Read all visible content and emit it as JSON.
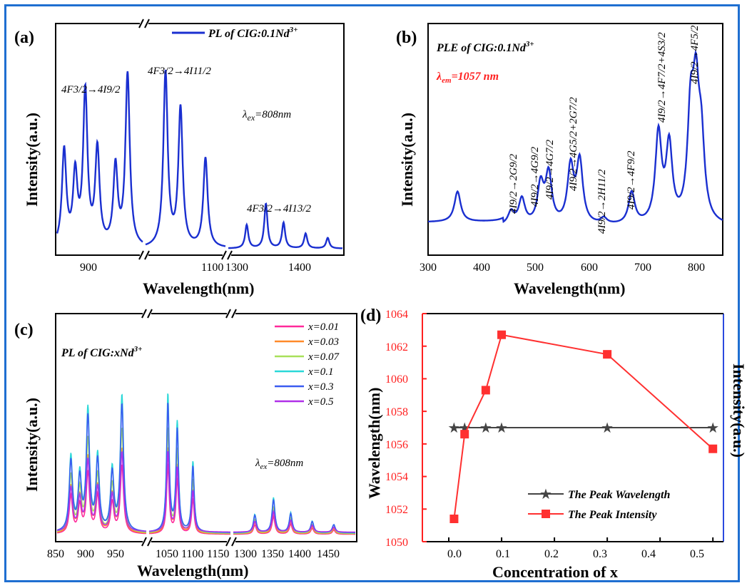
{
  "chart_data": [
    {
      "panel": "(a)",
      "type": "line",
      "xlabel": "Wavelength(nm)",
      "ylabel": "Intensity(a.u.)",
      "x_ticks": [
        "900",
        "1100",
        "1300",
        "1400"
      ],
      "legend": "PL of CIG:0.1Nd3+",
      "legend_position": "top-right",
      "series_color": "#1a2fd0",
      "annotations": [
        "4F3/2→4I9/2",
        "4F3/2→4I11/2",
        "4F3/2→4I13/2",
        "λex=808nm"
      ],
      "broken_axis": true,
      "peaks": [
        {
          "x": 867,
          "y": 0.45
        },
        {
          "x": 878,
          "y": 0.33
        },
        {
          "x": 888,
          "y": 0.72
        },
        {
          "x": 900,
          "y": 0.45
        },
        {
          "x": 918,
          "y": 0.37
        },
        {
          "x": 930,
          "y": 0.81
        },
        {
          "x": 1060,
          "y": 0.82
        },
        {
          "x": 1075,
          "y": 0.65
        },
        {
          "x": 1100,
          "y": 0.42
        },
        {
          "x": 1310,
          "y": 0.11
        },
        {
          "x": 1336,
          "y": 0.21
        },
        {
          "x": 1360,
          "y": 0.12
        },
        {
          "x": 1390,
          "y": 0.07
        },
        {
          "x": 1420,
          "y": 0.05
        }
      ]
    },
    {
      "panel": "(b)",
      "type": "line",
      "xlabel": "Wavelength(nm)",
      "ylabel": "Intensity(a.u.)",
      "xlim": [
        300,
        850
      ],
      "x_ticks": [
        "300",
        "400",
        "500",
        "600",
        "700",
        "800"
      ],
      "series_color": "#1a2fd0",
      "annotations": [
        "PLE of CIG:0.1Nd3+",
        "λem=1057 nm",
        "4I9/2→2G9/2",
        "4I9/2→4G9/2",
        "4I9/2→4G7/2",
        "4I9/2→4G5/2+2G7/2",
        "4I9/2→2H11/2",
        "4I9/2→4F9/2",
        "4I9/2→4F7/2+4S3/2",
        "4I9/2→4F5/2"
      ],
      "peaks": [
        {
          "x": 355,
          "y": 0.26
        },
        {
          "x": 455,
          "y": 0.11
        },
        {
          "x": 475,
          "y": 0.22
        },
        {
          "x": 510,
          "y": 0.33
        },
        {
          "x": 525,
          "y": 0.42
        },
        {
          "x": 566,
          "y": 0.48
        },
        {
          "x": 583,
          "y": 0.53
        },
        {
          "x": 628,
          "y": 0.05
        },
        {
          "x": 680,
          "y": 0.27
        },
        {
          "x": 730,
          "y": 0.76
        },
        {
          "x": 750,
          "y": 0.65
        },
        {
          "x": 790,
          "y": 0.86
        },
        {
          "x": 800,
          "y": 0.98
        },
        {
          "x": 810,
          "y": 0.62
        }
      ]
    },
    {
      "panel": "(c)",
      "type": "line",
      "xlabel": "Wavelength(nm)",
      "ylabel": "Intensity(a.u.)",
      "x_ticks": [
        "850",
        "900",
        "950",
        "1050",
        "1100",
        "1150",
        "1300",
        "1350",
        "1400",
        "1450"
      ],
      "broken_axis": true,
      "annotations": [
        "PL of CIG:xNd3+",
        "λex=808nm"
      ],
      "legend_position": "top-right",
      "series": [
        {
          "name": "x=0.01",
          "color": "#ff2a9a",
          "scale": 0.5
        },
        {
          "name": "x=0.03",
          "color": "#ff8a2a",
          "scale": 0.62
        },
        {
          "name": "x=0.07",
          "color": "#a8e05a",
          "scale": 0.76
        },
        {
          "name": "x=0.1",
          "color": "#2ad8d8",
          "scale": 1.0
        },
        {
          "name": "x=0.3",
          "color": "#3a5cf0",
          "scale": 0.93
        },
        {
          "name": "x=0.5",
          "color": "#b030e8",
          "scale": 0.58
        }
      ]
    },
    {
      "panel": "(d)",
      "type": "line",
      "xlabel": "Concentration of x",
      "ylabel": "Wavelength(nm)",
      "ylabel_right": "Intensity(a.u.)",
      "xlim": [
        -0.05,
        0.52
      ],
      "ylim": [
        1050,
        1064
      ],
      "x_ticks": [
        "0.0",
        "0.1",
        "0.2",
        "0.3",
        "0.4",
        "0.5"
      ],
      "y_ticks": [
        "1050",
        "1052",
        "1054",
        "1056",
        "1058",
        "1060",
        "1062",
        "1064"
      ],
      "legend_position": "bottom-right",
      "series": [
        {
          "name": "The Peak Wavelength",
          "color": "#444444",
          "marker": "star",
          "x": [
            0.01,
            0.03,
            0.07,
            0.1,
            0.3,
            0.5
          ],
          "y": [
            1057,
            1057,
            1057,
            1057,
            1057,
            1057
          ]
        },
        {
          "name": "The Peak Intensity",
          "color": "#ff3030",
          "marker": "square",
          "x": [
            0.01,
            0.03,
            0.07,
            0.1,
            0.3,
            0.5
          ],
          "y": [
            1051.4,
            1056.6,
            1059.3,
            1062.7,
            1061.5,
            1055.7
          ]
        }
      ]
    }
  ],
  "labels": {
    "a_panel": "(a)",
    "b_panel": "(b)",
    "c_panel": "(c)",
    "d_panel": "(d)",
    "a_x_t1": "900",
    "a_x_t2": "1100",
    "a_x_t3": "1300",
    "a_x_t4": "1400",
    "b_x_t1": "300",
    "b_x_t2": "400",
    "b_x_t3": "500",
    "b_x_t4": "600",
    "b_x_t5": "700",
    "b_x_t6": "800",
    "c_x_t1": "850",
    "c_x_t2": "900",
    "c_x_t3": "950",
    "c_x_t4": "1050",
    "c_x_t5": "1100",
    "c_x_t6": "1150",
    "c_x_t7": "1300",
    "c_x_t8": "1350",
    "c_x_t9": "1400",
    "c_x_t10": "1450",
    "d_y_t1": "1050",
    "d_y_t2": "1052",
    "d_y_t3": "1054",
    "d_y_t4": "1056",
    "d_y_t5": "1058",
    "d_y_t6": "1060",
    "d_y_t7": "1062",
    "d_y_t8": "1064",
    "d_x_t1": "0.0",
    "d_x_t2": "0.1",
    "d_x_t3": "0.2",
    "d_x_t4": "0.3",
    "d_x_t5": "0.4",
    "d_x_t6": "0.5",
    "wavelength_nm": "Wavelength(nm)",
    "intensity": "Intensity(a.u.)",
    "d_ylabel": "Wavelength(nm)",
    "d_xlabel": "Concentration of x",
    "a_legend": "PL of CIG:0.1Nd",
    "a_legend_sup": "3+",
    "a_lambda": "λ",
    "a_lambda_sub": "ex",
    "a_lambda_val": "=808nm",
    "b_title": "PLE of CIG:0.1Nd",
    "b_title_sup": "3+",
    "b_lambda": "λ",
    "b_lambda_sub": "em",
    "b_lambda_val": "=1057 nm",
    "c_title": "PL of CIG:xNd",
    "c_title_sup": "3+",
    "c_lambda": "λ",
    "c_lambda_sub": "ex",
    "c_lambda_val": "=808nm",
    "d_leg1": "The Peak Wavelength",
    "d_leg2": "The Peak Intensity",
    "c_leg1": "x=0.01",
    "c_leg2": "x=0.03",
    "c_leg3": "x=0.07",
    "c_leg4": "x=0.1",
    "c_leg5": "x=0.3",
    "c_leg6": "x=0.5",
    "t_a1": "4F3/2→4I9/2",
    "t_a2": "4F3/2→4I11/2",
    "t_a3": "4F3/2→4I13/2",
    "t_b1": "4I9/2→2G9/2",
    "t_b2": "4I9/2→4G9/2",
    "t_b3": "4I9/2→4G7/2",
    "t_b4": "4I9/2→4G5/2+2G7/2",
    "t_b5": "4I9/2→2H11/2",
    "t_b6": "4I9/2→4F9/2",
    "t_b7": "4I9/2→4F7/2+4S3/2",
    "t_b8": "4I9/2→4F5/2"
  }
}
